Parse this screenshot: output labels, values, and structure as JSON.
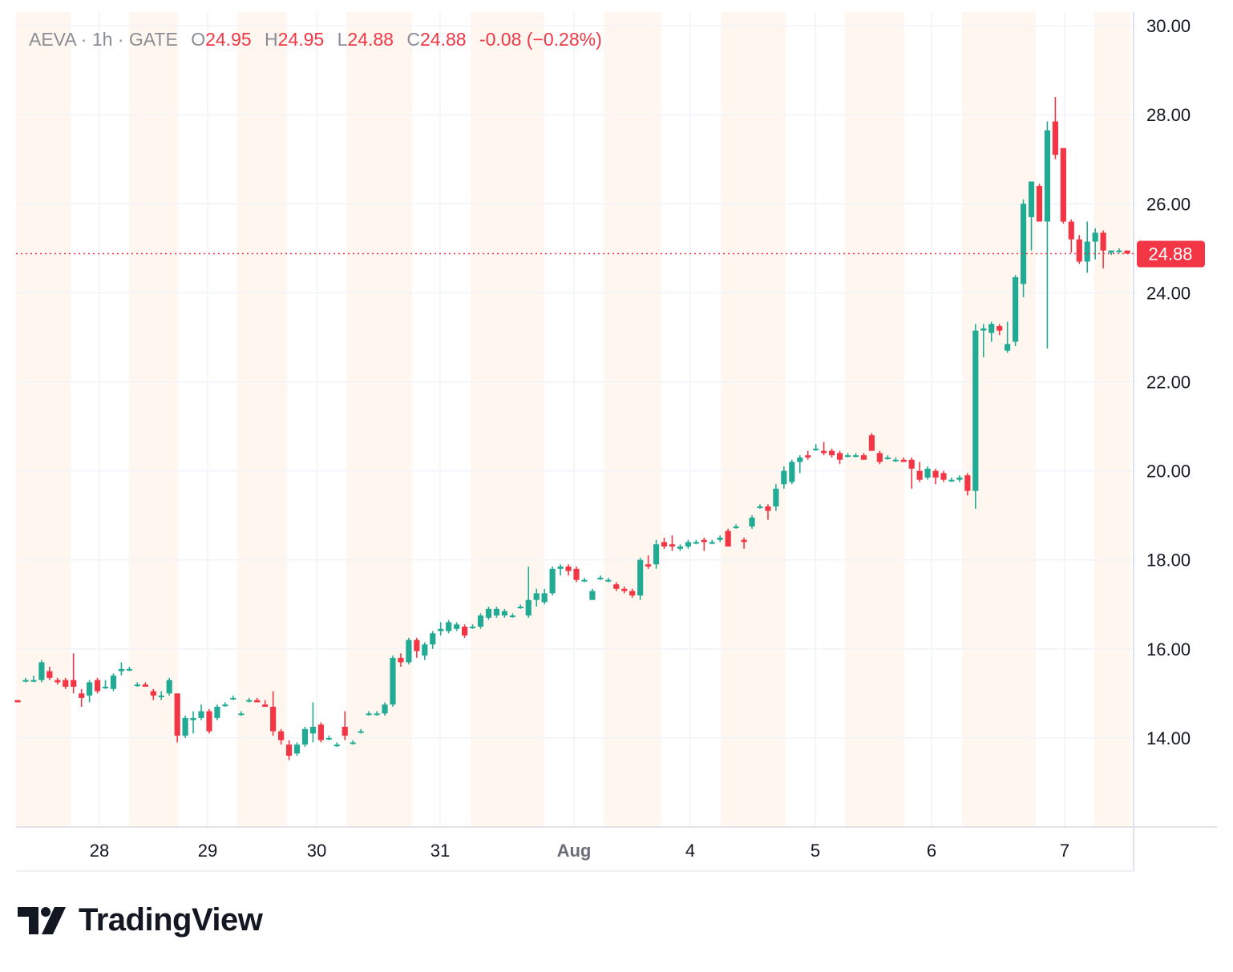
{
  "legend": {
    "symbol": "AEVA",
    "interval": "1h",
    "exchange": "GATE",
    "open_label": "O",
    "open": "24.95",
    "high_label": "H",
    "high": "24.95",
    "low_label": "L",
    "low": "24.88",
    "close_label": "C",
    "close": "24.88",
    "change": "-0.08",
    "change_pct": "(−0.28%)",
    "separator": "·"
  },
  "brand": {
    "name": "TradingView",
    "logo_icon": "tradingview-logo-icon"
  },
  "colors": {
    "up": "#22ab94",
    "down": "#f23645",
    "session_band": "#fff7ef",
    "grid": "#f0f3fa",
    "axis_text": "#131722",
    "last_price_bg": "#f23645"
  },
  "chart_data": {
    "type": "candlestick",
    "interval": "1h",
    "y_axis": {
      "min": 12.0,
      "max": 30.0,
      "ticks": [
        "14.00",
        "16.00",
        "18.00",
        "20.00",
        "22.00",
        "24.00",
        "26.00",
        "28.00",
        "30.00"
      ],
      "position": "right"
    },
    "x_axis": {
      "labels": [
        "28",
        "29",
        "30",
        "31",
        "Aug",
        "4",
        "5",
        "6",
        "7"
      ]
    },
    "last_price": "24.88",
    "grid": true,
    "extended_hours_shading": true,
    "candles": [
      [
        14.85,
        14.85,
        14.8,
        14.8
      ],
      [
        15.3,
        15.35,
        15.25,
        15.3
      ],
      [
        15.3,
        15.4,
        15.25,
        15.3
      ],
      [
        15.3,
        15.75,
        15.25,
        15.7
      ],
      [
        15.5,
        15.6,
        15.3,
        15.35
      ],
      [
        15.3,
        15.35,
        15.2,
        15.25
      ],
      [
        15.3,
        15.35,
        15.1,
        15.15
      ],
      [
        15.3,
        15.9,
        15.0,
        15.15
      ],
      [
        15.0,
        15.1,
        14.7,
        14.9
      ],
      [
        14.95,
        15.3,
        14.8,
        15.25
      ],
      [
        15.3,
        15.35,
        15.0,
        15.05
      ],
      [
        15.15,
        15.3,
        15.1,
        15.15
      ],
      [
        15.1,
        15.45,
        15.05,
        15.4
      ],
      [
        15.5,
        15.7,
        15.4,
        15.55
      ],
      [
        15.55,
        15.6,
        15.5,
        15.55
      ],
      [
        15.2,
        15.25,
        15.15,
        15.2
      ],
      [
        15.2,
        15.25,
        15.15,
        15.15
      ],
      [
        15.05,
        15.1,
        14.85,
        14.95
      ],
      [
        14.95,
        15.05,
        14.85,
        14.95
      ],
      [
        15.0,
        15.35,
        14.95,
        15.3
      ],
      [
        15.0,
        15.0,
        13.9,
        14.05
      ],
      [
        14.05,
        14.5,
        14.0,
        14.45
      ],
      [
        14.4,
        14.6,
        14.1,
        14.45
      ],
      [
        14.45,
        14.75,
        14.4,
        14.6
      ],
      [
        14.6,
        14.65,
        14.1,
        14.15
      ],
      [
        14.45,
        14.75,
        14.4,
        14.7
      ],
      [
        14.75,
        14.8,
        14.7,
        14.75
      ],
      [
        14.9,
        14.95,
        14.85,
        14.9
      ],
      [
        14.55,
        14.6,
        14.5,
        14.55
      ],
      [
        14.85,
        14.9,
        14.8,
        14.85
      ],
      [
        14.85,
        14.9,
        14.8,
        14.8
      ],
      [
        14.75,
        14.85,
        14.7,
        14.7
      ],
      [
        14.7,
        15.05,
        14.05,
        14.15
      ],
      [
        14.15,
        14.2,
        13.85,
        13.95
      ],
      [
        13.85,
        13.95,
        13.5,
        13.6
      ],
      [
        13.65,
        13.9,
        13.6,
        13.85
      ],
      [
        13.85,
        14.25,
        13.8,
        14.2
      ],
      [
        14.1,
        14.8,
        13.9,
        14.25
      ],
      [
        14.3,
        14.35,
        13.9,
        13.95
      ],
      [
        14.0,
        14.05,
        13.95,
        14.0
      ],
      [
        13.85,
        13.9,
        13.8,
        13.85
      ],
      [
        14.25,
        14.6,
        13.95,
        14.05
      ],
      [
        13.9,
        13.95,
        13.85,
        13.9
      ],
      [
        14.15,
        14.2,
        14.1,
        14.15
      ],
      [
        14.55,
        14.6,
        14.5,
        14.55
      ],
      [
        14.55,
        14.6,
        14.5,
        14.55
      ],
      [
        14.55,
        14.8,
        14.5,
        14.75
      ],
      [
        14.75,
        15.85,
        14.7,
        15.8
      ],
      [
        15.8,
        15.9,
        15.6,
        15.7
      ],
      [
        15.7,
        16.25,
        15.65,
        16.2
      ],
      [
        16.2,
        16.25,
        15.8,
        15.95
      ],
      [
        15.85,
        16.15,
        15.75,
        16.1
      ],
      [
        16.1,
        16.4,
        16.0,
        16.35
      ],
      [
        16.4,
        16.6,
        16.3,
        16.45
      ],
      [
        16.4,
        16.65,
        16.35,
        16.6
      ],
      [
        16.45,
        16.6,
        16.4,
        16.55
      ],
      [
        16.5,
        16.55,
        16.25,
        16.3
      ],
      [
        16.5,
        16.55,
        16.45,
        16.5
      ],
      [
        16.5,
        16.8,
        16.45,
        16.75
      ],
      [
        16.7,
        16.95,
        16.65,
        16.9
      ],
      [
        16.75,
        16.95,
        16.7,
        16.9
      ],
      [
        16.75,
        16.9,
        16.7,
        16.85
      ],
      [
        16.75,
        16.8,
        16.7,
        16.75
      ],
      [
        16.95,
        17.0,
        16.9,
        16.95
      ],
      [
        16.75,
        17.85,
        16.7,
        17.1
      ],
      [
        17.1,
        17.35,
        16.95,
        17.25
      ],
      [
        17.05,
        17.35,
        17.0,
        17.25
      ],
      [
        17.25,
        17.85,
        17.2,
        17.8
      ],
      [
        17.8,
        17.9,
        17.65,
        17.85
      ],
      [
        17.85,
        17.9,
        17.65,
        17.75
      ],
      [
        17.8,
        17.85,
        17.5,
        17.55
      ],
      [
        17.55,
        17.6,
        17.5,
        17.55
      ],
      [
        17.1,
        17.35,
        17.1,
        17.3
      ],
      [
        17.6,
        17.65,
        17.55,
        17.6
      ],
      [
        17.55,
        17.6,
        17.5,
        17.55
      ],
      [
        17.45,
        17.5,
        17.3,
        17.35
      ],
      [
        17.35,
        17.4,
        17.25,
        17.3
      ],
      [
        17.3,
        17.35,
        17.15,
        17.2
      ],
      [
        17.2,
        18.05,
        17.1,
        18.0
      ],
      [
        17.9,
        18.1,
        17.8,
        17.85
      ],
      [
        17.9,
        18.45,
        17.8,
        18.35
      ],
      [
        18.4,
        18.5,
        18.25,
        18.3
      ],
      [
        18.35,
        18.55,
        18.2,
        18.3
      ],
      [
        18.25,
        18.35,
        18.2,
        18.3
      ],
      [
        18.3,
        18.45,
        18.25,
        18.4
      ],
      [
        18.4,
        18.45,
        18.35,
        18.4
      ],
      [
        18.45,
        18.5,
        18.2,
        18.4
      ],
      [
        18.4,
        18.45,
        18.35,
        18.4
      ],
      [
        18.45,
        18.55,
        18.4,
        18.5
      ],
      [
        18.65,
        18.7,
        18.3,
        18.3
      ],
      [
        18.75,
        18.8,
        18.7,
        18.75
      ],
      [
        18.45,
        18.5,
        18.25,
        18.4
      ],
      [
        18.75,
        19.0,
        18.7,
        18.95
      ],
      [
        19.2,
        19.25,
        19.15,
        19.2
      ],
      [
        19.2,
        19.25,
        18.9,
        19.1
      ],
      [
        19.2,
        19.7,
        19.1,
        19.6
      ],
      [
        19.7,
        20.1,
        19.6,
        20.0
      ],
      [
        19.75,
        20.25,
        19.7,
        20.2
      ],
      [
        20.2,
        20.35,
        19.95,
        20.3
      ],
      [
        20.35,
        20.45,
        20.25,
        20.3
      ],
      [
        20.5,
        20.6,
        20.45,
        20.5
      ],
      [
        20.45,
        20.65,
        20.35,
        20.4
      ],
      [
        20.45,
        20.5,
        20.3,
        20.35
      ],
      [
        20.4,
        20.45,
        20.15,
        20.25
      ],
      [
        20.35,
        20.4,
        20.3,
        20.35
      ],
      [
        20.35,
        20.4,
        20.3,
        20.35
      ],
      [
        20.35,
        20.4,
        20.25,
        20.25
      ],
      [
        20.8,
        20.85,
        20.45,
        20.45
      ],
      [
        20.4,
        20.45,
        20.15,
        20.2
      ],
      [
        20.3,
        20.35,
        20.25,
        20.3
      ],
      [
        20.25,
        20.3,
        20.2,
        20.25
      ],
      [
        20.25,
        20.3,
        20.2,
        20.2
      ],
      [
        20.25,
        20.3,
        19.6,
        20.05
      ],
      [
        20.0,
        20.2,
        19.75,
        19.8
      ],
      [
        19.85,
        20.1,
        19.8,
        20.05
      ],
      [
        20.0,
        20.05,
        19.7,
        19.85
      ],
      [
        19.95,
        20.0,
        19.75,
        19.8
      ],
      [
        19.8,
        19.85,
        19.75,
        19.8
      ],
      [
        19.8,
        19.9,
        19.75,
        19.85
      ],
      [
        19.9,
        19.95,
        19.45,
        19.55
      ],
      [
        19.55,
        23.3,
        19.15,
        23.15
      ],
      [
        23.15,
        23.3,
        22.55,
        23.2
      ],
      [
        23.1,
        23.35,
        22.9,
        23.3
      ],
      [
        23.25,
        23.3,
        23.05,
        23.15
      ],
      [
        22.7,
        23.35,
        22.65,
        22.85
      ],
      [
        22.9,
        24.4,
        22.8,
        24.35
      ],
      [
        24.2,
        26.1,
        23.9,
        26.0
      ],
      [
        25.7,
        26.5,
        24.95,
        26.5
      ],
      [
        26.4,
        26.45,
        25.6,
        25.6
      ],
      [
        25.6,
        27.85,
        22.75,
        27.65
      ],
      [
        27.85,
        28.4,
        27.0,
        27.1
      ],
      [
        27.25,
        27.25,
        25.55,
        25.6
      ],
      [
        25.6,
        25.65,
        24.9,
        25.2
      ],
      [
        25.2,
        25.3,
        24.65,
        24.7
      ],
      [
        24.7,
        25.6,
        24.45,
        25.15
      ],
      [
        25.15,
        25.45,
        24.75,
        25.35
      ],
      [
        25.35,
        25.4,
        24.55,
        24.95
      ],
      [
        24.9,
        24.95,
        24.85,
        24.95
      ],
      [
        24.95,
        25.0,
        24.9,
        24.95
      ],
      [
        24.95,
        24.95,
        24.88,
        24.88
      ]
    ]
  }
}
